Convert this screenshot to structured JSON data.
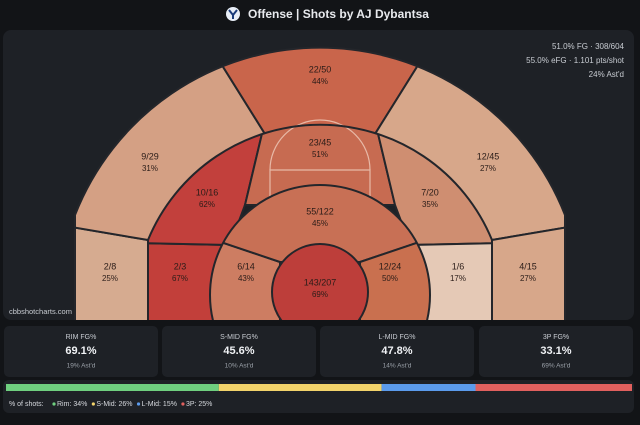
{
  "header": {
    "title": "Offense | Shots by AJ Dybantsa"
  },
  "summary": [
    "51.0% FG · 308/604",
    "55.0% eFG · 1.101 pts/shot",
    "24% Ast'd"
  ],
  "source": "cbbshotcharts.com",
  "zones": [
    {
      "made_att": "2/8",
      "pct": "25%",
      "color": "#d6ab90"
    },
    {
      "made_att": "9/29",
      "pct": "31%",
      "color": "#d4a084"
    },
    {
      "made_att": "22/50",
      "pct": "44%",
      "color": "#c9654b"
    },
    {
      "made_att": "12/45",
      "pct": "27%",
      "color": "#d7a78a"
    },
    {
      "made_att": "4/15",
      "pct": "27%",
      "color": "#d7a78a"
    },
    {
      "made_att": "2/3",
      "pct": "67%",
      "color": "#c23f3a"
    },
    {
      "made_att": "10/16",
      "pct": "62%",
      "color": "#c2403c"
    },
    {
      "made_att": "23/45",
      "pct": "51%",
      "color": "#c76b51"
    },
    {
      "made_att": "7/20",
      "pct": "35%",
      "color": "#cf8e71"
    },
    {
      "made_att": "1/6",
      "pct": "17%",
      "color": "#e5c9b6"
    },
    {
      "made_att": "6/14",
      "pct": "43%",
      "color": "#cd7d62"
    },
    {
      "made_att": "55/122",
      "pct": "45%",
      "color": "#c87055"
    },
    {
      "made_att": "12/24",
      "pct": "50%",
      "color": "#c9704f"
    },
    {
      "made_att": "143/207",
      "pct": "69%",
      "color": "#bd3e3a"
    }
  ],
  "cards": [
    {
      "label": "RIM FG%",
      "value": "69.1%",
      "sub": "19% Ast'd"
    },
    {
      "label": "S-MID FG%",
      "value": "45.6%",
      "sub": "10% Ast'd"
    },
    {
      "label": "L-MID FG%",
      "value": "47.8%",
      "sub": "14% Ast'd"
    },
    {
      "label": "3P FG%",
      "value": "33.1%",
      "sub": "69% Ast'd"
    }
  ],
  "shot_share": {
    "title": "% of shots:",
    "segments": [
      {
        "value": 34,
        "label": "Rim: 34%",
        "color": "#6fcf7f"
      },
      {
        "value": 26,
        "label": "S-Mid: 26%",
        "color": "#f2d36b"
      },
      {
        "value": 15,
        "label": "L-Mid: 15%",
        "color": "#5b9bec"
      },
      {
        "value": 25,
        "label": "3P: 25%",
        "color": "#e0605e"
      }
    ]
  }
}
